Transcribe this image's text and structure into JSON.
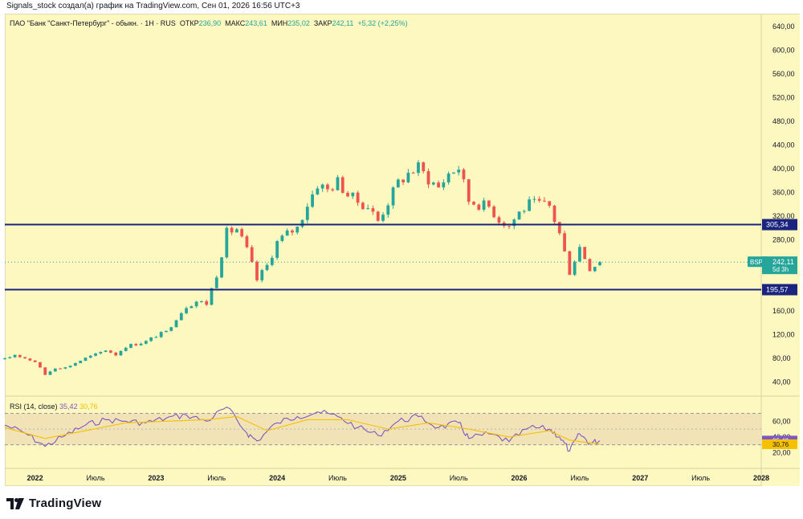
{
  "header": {
    "text": "Signals_stock создал(а) график на TradingView.com, Сен 01, 2026 16:56 UTC+3"
  },
  "legend": {
    "name": "ПАО \"Банк \"Санкт-Петербург\" - обыкн. · 1Н · RUS",
    "open_label": "ОТКР",
    "open": "236,90",
    "high_label": "МАКС",
    "high": "243,61",
    "low_label": "МИН",
    "low": "235,02",
    "close_label": "ЗАКР",
    "close": "242,11",
    "change": "+5,32 (+2,25%)"
  },
  "rsi_legend": {
    "label": "RSI (14, close)",
    "rsi_value": "35,42",
    "ma_value": "30,76"
  },
  "brand": {
    "name": "TradingView"
  },
  "colors": {
    "background": "#fdf7c0",
    "up": "#26a69a",
    "down": "#ef5350",
    "level_line": "#1a237e",
    "rsi_line": "#7e57c2",
    "rsi_ma": "#f5c000"
  },
  "chart_data": [
    {
      "type": "candlestick",
      "symbol": "BSPB",
      "price_tag": {
        "symbol": "BSPB",
        "value": "242,11",
        "sub": "5d 3h",
        "price": 242.11
      },
      "ylim": [
        20,
        660
      ],
      "yticks": [
        40,
        80,
        120,
        160,
        200,
        240,
        280,
        320,
        360,
        400,
        440,
        480,
        520,
        560,
        600,
        640
      ],
      "ytick_labels": [
        "40,00",
        "80,00",
        "120,00",
        "160,00",
        "200,00",
        "240,00",
        "280,00",
        "320,00",
        "360,00",
        "400,00",
        "440,00",
        "480,00",
        "520,00",
        "560,00",
        "600,00",
        "640,00"
      ],
      "x_labels": [
        "2022",
        "Июль",
        "2023",
        "Июль",
        "2024",
        "Июль",
        "2025",
        "Июль",
        "2026",
        "Июль",
        "2027",
        "Июль",
        "2028"
      ],
      "x_domain": [
        "2021-10",
        "2028-01"
      ],
      "horizontal_levels": [
        {
          "value": 305.34,
          "label": "305,34"
        },
        {
          "value": 195.57,
          "label": "195,57"
        }
      ],
      "close_path": [
        [
          "2021-10",
          78
        ],
        [
          "2021-11",
          86
        ],
        [
          "2021-12",
          80
        ],
        [
          "2022-01",
          74
        ],
        [
          "2022-02",
          52
        ],
        [
          "2022-03",
          64
        ],
        [
          "2022-04",
          64
        ],
        [
          "2022-05",
          72
        ],
        [
          "2022-06",
          80
        ],
        [
          "2022-07",
          86
        ],
        [
          "2022-08",
          94
        ],
        [
          "2022-09",
          86
        ],
        [
          "2022-10",
          100
        ],
        [
          "2022-11",
          104
        ],
        [
          "2022-12",
          108
        ],
        [
          "2023-01",
          118
        ],
        [
          "2023-02",
          124
        ],
        [
          "2023-03",
          148
        ],
        [
          "2023-04",
          168
        ],
        [
          "2023-05",
          176
        ],
        [
          "2023-06",
          172
        ],
        [
          "2023-07",
          222
        ],
        [
          "2023-08",
          292
        ],
        [
          "2023-09",
          298
        ],
        [
          "2023-10",
          262
        ],
        [
          "2023-11",
          212
        ],
        [
          "2023-12",
          236
        ],
        [
          "2024-01",
          276
        ],
        [
          "2024-02",
          290
        ],
        [
          "2024-03",
          300
        ],
        [
          "2024-04",
          340
        ],
        [
          "2024-05",
          374
        ],
        [
          "2024-06",
          364
        ],
        [
          "2024-07",
          378
        ],
        [
          "2024-08",
          356
        ],
        [
          "2024-09",
          344
        ],
        [
          "2024-10",
          336
        ],
        [
          "2024-11",
          312
        ],
        [
          "2024-12",
          344
        ],
        [
          "2025-01",
          376
        ],
        [
          "2025-02",
          392
        ],
        [
          "2025-03",
          402
        ],
        [
          "2025-04",
          382
        ],
        [
          "2025-05",
          368
        ],
        [
          "2025-06",
          392
        ],
        [
          "2025-07",
          402
        ],
        [
          "2025-08",
          346
        ],
        [
          "2025-09",
          340
        ],
        [
          "2025-10",
          336
        ],
        [
          "2025-11",
          314
        ],
        [
          "2025-12",
          304
        ],
        [
          "2026-01",
          326
        ],
        [
          "2026-02",
          340
        ],
        [
          "2026-03",
          340
        ],
        [
          "2026-04",
          336
        ],
        [
          "2026-05",
          290
        ],
        [
          "2026-06",
          226
        ],
        [
          "2026-07",
          268
        ],
        [
          "2026-08",
          232
        ],
        [
          "2026-09",
          242
        ]
      ]
    },
    {
      "type": "line",
      "name": "RSI (14, close)",
      "ylim": [
        0,
        90
      ],
      "yticks": [
        20,
        40,
        60
      ],
      "ytick_labels": [
        "20,00",
        "40,00",
        "60,00"
      ],
      "band": [
        30,
        70
      ],
      "series": [
        {
          "name": "RSI",
          "color": "#7e57c2",
          "values": [
            [
              "2021-10",
              55
            ],
            [
              "2021-12",
              45
            ],
            [
              "2022-02",
              28
            ],
            [
              "2022-04",
              42
            ],
            [
              "2022-06",
              55
            ],
            [
              "2022-08",
              62
            ],
            [
              "2022-10",
              60
            ],
            [
              "2022-12",
              58
            ],
            [
              "2023-02",
              64
            ],
            [
              "2023-04",
              68
            ],
            [
              "2023-06",
              60
            ],
            [
              "2023-08",
              78
            ],
            [
              "2023-10",
              45
            ],
            [
              "2023-11",
              35
            ],
            [
              "2024-01",
              58
            ],
            [
              "2024-03",
              66
            ],
            [
              "2024-05",
              72
            ],
            [
              "2024-07",
              66
            ],
            [
              "2024-09",
              52
            ],
            [
              "2024-11",
              42
            ],
            [
              "2025-01",
              60
            ],
            [
              "2025-03",
              66
            ],
            [
              "2025-05",
              52
            ],
            [
              "2025-07",
              58
            ],
            [
              "2025-08",
              38
            ],
            [
              "2025-10",
              44
            ],
            [
              "2025-12",
              34
            ],
            [
              "2026-02",
              52
            ],
            [
              "2026-04",
              50
            ],
            [
              "2026-05",
              40
            ],
            [
              "2026-06",
              22
            ],
            [
              "2026-07",
              44
            ],
            [
              "2026-08",
              32
            ],
            [
              "2026-09",
              35.42
            ]
          ]
        },
        {
          "name": "RSI MA",
          "color": "#f5c000",
          "values": [
            [
              "2021-10",
              52
            ],
            [
              "2022-02",
              38
            ],
            [
              "2022-06",
              48
            ],
            [
              "2022-10",
              58
            ],
            [
              "2023-02",
              60
            ],
            [
              "2023-06",
              62
            ],
            [
              "2023-09",
              66
            ],
            [
              "2023-12",
              48
            ],
            [
              "2024-04",
              62
            ],
            [
              "2024-08",
              62
            ],
            [
              "2024-12",
              50
            ],
            [
              "2025-04",
              58
            ],
            [
              "2025-08",
              50
            ],
            [
              "2025-12",
              40
            ],
            [
              "2026-04",
              48
            ],
            [
              "2026-06",
              36
            ],
            [
              "2026-09",
              30.76
            ]
          ]
        }
      ]
    }
  ]
}
